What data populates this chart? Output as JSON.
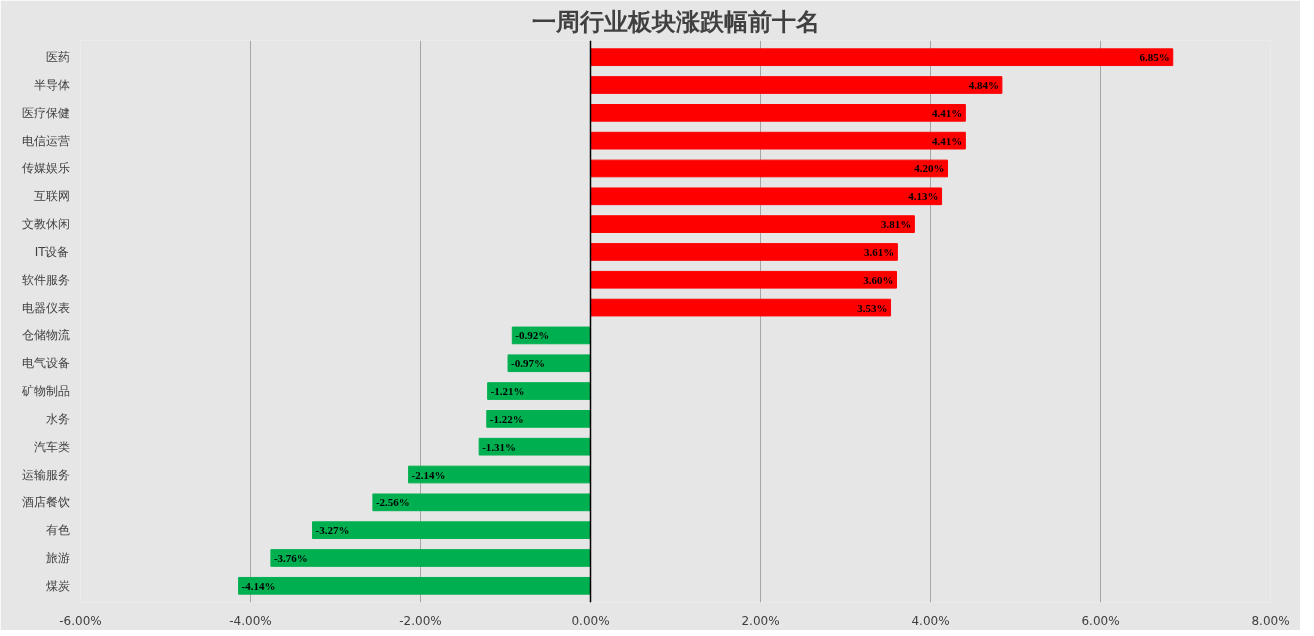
{
  "chart_data": {
    "type": "bar",
    "orientation": "horizontal",
    "title": "一周行业板块涨跌幅前十名",
    "categories": [
      "医药",
      "半导体",
      "医疗保健",
      "电信运营",
      "传媒娱乐",
      "互联网",
      "文教休闲",
      "IT设备",
      "软件服务",
      "电器仪表",
      "仓储物流",
      "电气设备",
      "矿物制品",
      "水务",
      "汽车类",
      "运输服务",
      "酒店餐饮",
      "有色",
      "旅游",
      "煤炭"
    ],
    "values": [
      6.85,
      4.84,
      4.41,
      4.41,
      4.2,
      4.13,
      3.81,
      3.61,
      3.6,
      3.53,
      -0.92,
      -0.97,
      -1.21,
      -1.22,
      -1.31,
      -2.14,
      -2.56,
      -3.27,
      -3.76,
      -4.14
    ],
    "colors": [
      "#ff0000",
      "#ff0000",
      "#ff0000",
      "#ff0000",
      "#ff0000",
      "#ff0000",
      "#ff0000",
      "#ff0000",
      "#ff0000",
      "#ff0000",
      "#00b050",
      "#00b050",
      "#00b050",
      "#00b050",
      "#00b050",
      "#00b050",
      "#00b050",
      "#00b050",
      "#00b050",
      "#00b050"
    ],
    "value_labels": [
      "6.85%",
      "4.84%",
      "4.41%",
      "4.41%",
      "4.20%",
      "4.13%",
      "3.81%",
      "3.61%",
      "3.60%",
      "3.53%",
      "-0.92%",
      "-0.97%",
      "-1.21%",
      "-1.22%",
      "-1.31%",
      "-2.14%",
      "-2.56%",
      "-3.27%",
      "-3.76%",
      "-4.14%"
    ],
    "xlim": [
      -6,
      8
    ],
    "xticks": [
      {
        "value": -6,
        "label": "-6.00%"
      },
      {
        "value": -4,
        "label": "-4.00%"
      },
      {
        "value": -2,
        "label": "-2.00%"
      },
      {
        "value": 0,
        "label": "0.00%"
      },
      {
        "value": 2,
        "label": "2.00%"
      },
      {
        "value": 4,
        "label": "4.00%"
      },
      {
        "value": 6,
        "label": "6.00%"
      },
      {
        "value": 8,
        "label": "8.00%"
      }
    ],
    "ref_lines": [
      {
        "axis": "x",
        "value": 0,
        "color": "#000000"
      }
    ],
    "grid": "x"
  }
}
